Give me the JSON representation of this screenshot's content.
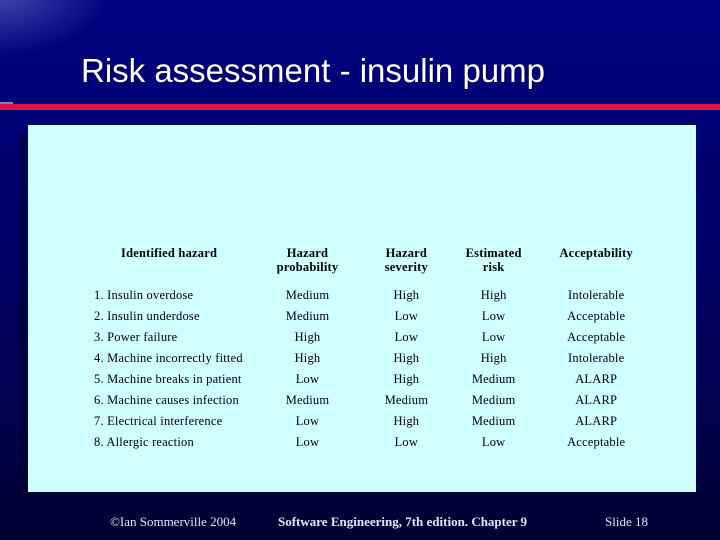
{
  "slide": {
    "title": "Risk assessment - insulin pump",
    "colors": {
      "background_top": "#020280",
      "background_bottom": "#000233",
      "panel": "#CFFFFF",
      "accent_line": "#E01144",
      "title_text": "#FFFFFF",
      "table_text": "#000000",
      "footer_text": "#E6E6F0"
    }
  },
  "table": {
    "columns": [
      "Identified hazard",
      "Hazard probability",
      "Hazard severity",
      "Estimated risk",
      "Acceptability"
    ],
    "rows": [
      [
        "1. Insulin overdose",
        "Medium",
        "High",
        "High",
        "Intolerable"
      ],
      [
        "2. Insulin underdose",
        "Medium",
        "Low",
        "Low",
        "Acceptable"
      ],
      [
        "3. Power failure",
        "High",
        "Low",
        "Low",
        "Acceptable"
      ],
      [
        "4. Machine incorrectly fitted",
        "High",
        "High",
        "High",
        "Intolerable"
      ],
      [
        "5. Machine breaks in patient",
        "Low",
        "High",
        "Medium",
        "ALARP"
      ],
      [
        "6. Machine causes infection",
        "Medium",
        "Medium",
        "Medium",
        "ALARP"
      ],
      [
        "7. Electrical interference",
        "Low",
        "High",
        "Medium",
        "ALARP"
      ],
      [
        "8. Allergic reaction",
        "Low",
        "Low",
        "Low",
        "Acceptable"
      ]
    ]
  },
  "footer": {
    "copyright": "©Ian Sommerville 2004",
    "center": "Software Engineering, 7th edition. Chapter 9",
    "slide_number": "Slide 18"
  }
}
